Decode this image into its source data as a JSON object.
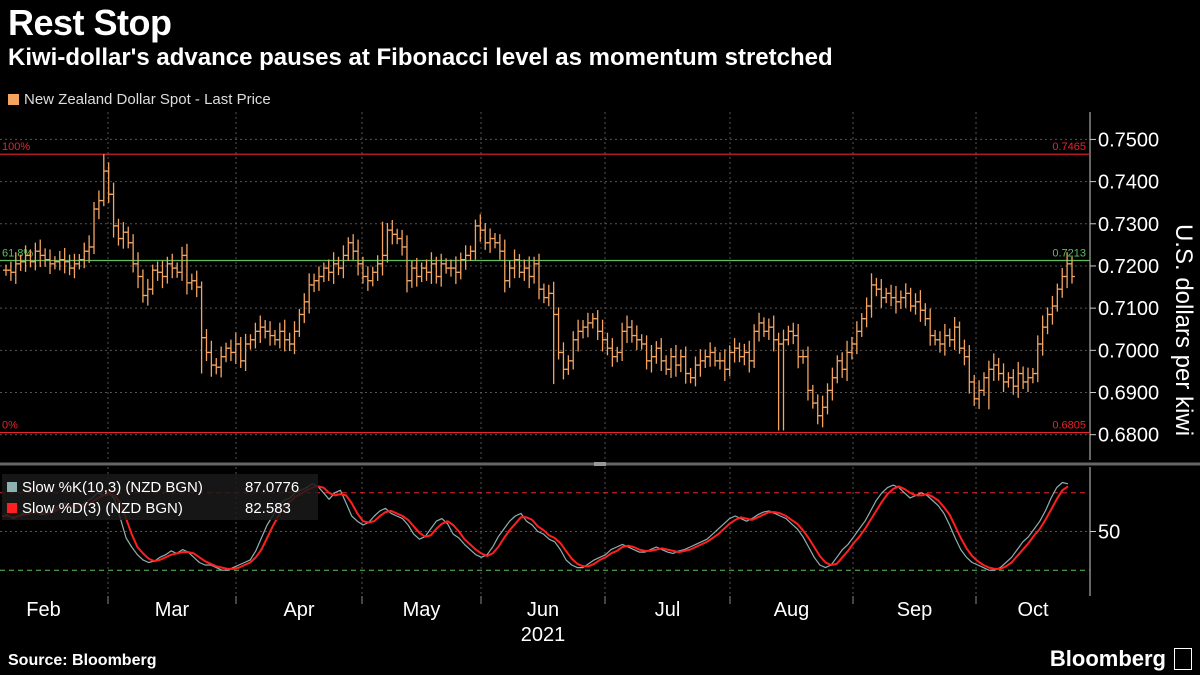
{
  "header": {
    "title": "Rest Stop",
    "subtitle": "Kiwi-dollar's advance pauses at Fibonacci level as momentum stretched",
    "legend_label": "New Zealand Dollar Spot - Last Price"
  },
  "footer": {
    "source": "Source: Bloomberg",
    "brand": "Bloomberg"
  },
  "colors": {
    "price": "#f4a460",
    "fib_red": "#e8232a",
    "fib_green": "#5fbf5f",
    "k_line": "#8fb0b0",
    "d_line": "#ff1f1f"
  },
  "chart_data": [
    {
      "type": "ohlc",
      "series_name": "New Zealand Dollar Spot - Last Price",
      "ylabel": "U.S. dollars per kiwi",
      "ylim": [
        0.674,
        0.7565
      ],
      "yticks": [
        "0.6800",
        "0.6900",
        "0.7000",
        "0.7100",
        "0.7200",
        "0.7300",
        "0.7400",
        "0.7500"
      ],
      "months": [
        "Feb",
        "Mar",
        "Apr",
        "May",
        "Jun",
        "Jul",
        "Aug",
        "Sep",
        "Oct"
      ],
      "year": "2021",
      "fib_levels": [
        {
          "pct": "100%",
          "value": "0.7465",
          "y": 0.7465
        },
        {
          "pct": "61.8%",
          "value": "0.7213",
          "y": 0.7213
        },
        {
          "pct": "0%",
          "value": "0.6805",
          "y": 0.6805
        }
      ],
      "closes": [
        0.719,
        0.7185,
        0.7205,
        0.721,
        0.7225,
        0.721,
        0.7235,
        0.7225,
        0.7215,
        0.7205,
        0.721,
        0.7215,
        0.721,
        0.7195,
        0.7205,
        0.7215,
        0.7235,
        0.7245,
        0.7335,
        0.7355,
        0.7425,
        0.737,
        0.7295,
        0.7265,
        0.728,
        0.7255,
        0.7205,
        0.7175,
        0.713,
        0.7145,
        0.719,
        0.7185,
        0.7175,
        0.7205,
        0.7195,
        0.7185,
        0.7225,
        0.716,
        0.7165,
        0.715,
        0.703,
        0.6995,
        0.6965,
        0.696,
        0.6985,
        0.7005,
        0.6995,
        0.7015,
        0.6975,
        0.7015,
        0.7025,
        0.7045,
        0.7055,
        0.7045,
        0.7035,
        0.7025,
        0.7045,
        0.7025,
        0.7015,
        0.7045,
        0.7085,
        0.7115,
        0.7155,
        0.7165,
        0.7175,
        0.7195,
        0.7185,
        0.7205,
        0.7195,
        0.7225,
        0.7255,
        0.7235,
        0.7205,
        0.7175,
        0.7165,
        0.7185,
        0.7205,
        0.7225,
        0.7285,
        0.7275,
        0.7265,
        0.7245,
        0.7165,
        0.7195,
        0.7175,
        0.7195,
        0.7185,
        0.7205,
        0.7175,
        0.7205,
        0.7195,
        0.7195,
        0.7185,
        0.7215,
        0.7225,
        0.7235,
        0.7295,
        0.7285,
        0.7255,
        0.7265,
        0.7255,
        0.7235,
        0.7165,
        0.7195,
        0.7215,
        0.7185,
        0.7195,
        0.7175,
        0.7205,
        0.7145,
        0.7125,
        0.7135,
        0.7085,
        0.6995,
        0.6955,
        0.6975,
        0.7025,
        0.7045,
        0.7055,
        0.7065,
        0.7075,
        0.7045,
        0.7025,
        0.7005,
        0.6985,
        0.6995,
        0.7045,
        0.7055,
        0.7035,
        0.7025,
        0.7015,
        0.6975,
        0.6985,
        0.7005,
        0.6975,
        0.6955,
        0.6985,
        0.6965,
        0.6985,
        0.6945,
        0.6935,
        0.6965,
        0.6975,
        0.6985,
        0.6995,
        0.6975,
        0.6975,
        0.6955,
        0.6995,
        0.7005,
        0.6985,
        0.6995,
        0.6975,
        0.7045,
        0.7065,
        0.7045,
        0.7055,
        0.7025,
        0.7015,
        0.7025,
        0.7045,
        0.7035,
        0.6985,
        0.6985,
        0.6905,
        0.6875,
        0.6845,
        0.6865,
        0.6905,
        0.6935,
        0.6975,
        0.6955,
        0.6995,
        0.7015,
        0.7045,
        0.7075,
        0.7105,
        0.7155,
        0.7145,
        0.7125,
        0.7135,
        0.7125,
        0.7115,
        0.7125,
        0.7135,
        0.7105,
        0.7115,
        0.7095,
        0.7075,
        0.7035,
        0.7025,
        0.7015,
        0.7035,
        0.7025,
        0.7055,
        0.7005,
        0.6985,
        0.6925,
        0.6885,
        0.6905,
        0.6935,
        0.6955,
        0.6965,
        0.6945,
        0.6925,
        0.6935,
        0.6915,
        0.6945,
        0.6925,
        0.6935,
        0.6945,
        0.7015,
        0.7055,
        0.7085,
        0.7105,
        0.7145,
        0.7175,
        0.7205,
        0.7175
      ],
      "lows": [
        {
          "i": 158,
          "v": 0.681
        },
        {
          "i": 159,
          "v": 0.681
        },
        {
          "i": 40,
          "v": 0.6945
        },
        {
          "i": 112,
          "v": 0.692
        },
        {
          "i": 201,
          "v": 0.686
        }
      ],
      "highs": [
        {
          "i": 20,
          "v": 0.7465
        },
        {
          "i": 96,
          "v": 0.731
        },
        {
          "i": 77,
          "v": 0.7305
        }
      ]
    },
    {
      "type": "line",
      "ylim": [
        0,
        100
      ],
      "ytick": "50",
      "overbought": 80,
      "oversold": 20,
      "series": [
        {
          "name": "Slow %K(10,3) (NZD BGN)",
          "last": "87.0776",
          "values": [
            62,
            63,
            60,
            62,
            65,
            64,
            66,
            63,
            64,
            66,
            70,
            72,
            70,
            68,
            70,
            73,
            76,
            80,
            78,
            80,
            75,
            60,
            45,
            38,
            32,
            28,
            26,
            27,
            30,
            32,
            35,
            33,
            36,
            34,
            30,
            26,
            24,
            24,
            22,
            20,
            20,
            22,
            24,
            26,
            28,
            35,
            45,
            55,
            62,
            70,
            74,
            76,
            80,
            82,
            84,
            87,
            85,
            80,
            75,
            80,
            82,
            72,
            62,
            58,
            55,
            57,
            62,
            66,
            68,
            64,
            62,
            60,
            55,
            48,
            44,
            46,
            52,
            58,
            60,
            56,
            48,
            45,
            40,
            36,
            32,
            30,
            32,
            38,
            46,
            52,
            58,
            62,
            64,
            58,
            55,
            50,
            48,
            44,
            42,
            36,
            28,
            24,
            22,
            22,
            25,
            28,
            30,
            32,
            36,
            38,
            40,
            38,
            36,
            34,
            34,
            36,
            38,
            36,
            34,
            33,
            35,
            36,
            38,
            40,
            42,
            44,
            48,
            52,
            56,
            60,
            62,
            60,
            58,
            60,
            63,
            65,
            66,
            64,
            62,
            60,
            56,
            52,
            46,
            38,
            30,
            24,
            22,
            24,
            30,
            36,
            40,
            46,
            52,
            58,
            66,
            74,
            80,
            84,
            86,
            84,
            80,
            76,
            78,
            80,
            78,
            74,
            70,
            64,
            55,
            45,
            36,
            30,
            26,
            24,
            22,
            20,
            20,
            22,
            26,
            30,
            36,
            42,
            46,
            52,
            58,
            66,
            76,
            84,
            88,
            87
          ]
        },
        {
          "name": "Slow %D(3) (NZD BGN)",
          "last": "82.583",
          "values": [
            62,
            62,
            61,
            62,
            63,
            64,
            65,
            64,
            64,
            65,
            67,
            69,
            70,
            70,
            69,
            71,
            73,
            76,
            78,
            79,
            78,
            72,
            60,
            48,
            38,
            33,
            29,
            27,
            28,
            30,
            32,
            33,
            34,
            34,
            33,
            30,
            27,
            25,
            23,
            22,
            21,
            21,
            22,
            24,
            26,
            30,
            36,
            45,
            54,
            62,
            69,
            73,
            77,
            79,
            82,
            84,
            85,
            84,
            80,
            78,
            79,
            78,
            72,
            64,
            58,
            57,
            58,
            62,
            65,
            66,
            64,
            62,
            59,
            54,
            49,
            46,
            47,
            52,
            56,
            58,
            55,
            50,
            44,
            40,
            36,
            33,
            31,
            33,
            38,
            45,
            51,
            56,
            61,
            61,
            59,
            54,
            51,
            47,
            45,
            41,
            35,
            29,
            25,
            23,
            23,
            25,
            28,
            30,
            33,
            35,
            38,
            39,
            38,
            36,
            35,
            35,
            36,
            37,
            36,
            35,
            34,
            35,
            36,
            38,
            40,
            42,
            45,
            48,
            52,
            56,
            59,
            61,
            60,
            59,
            61,
            63,
            65,
            65,
            64,
            62,
            59,
            56,
            51,
            45,
            38,
            31,
            26,
            24,
            25,
            30,
            35,
            41,
            46,
            52,
            59,
            66,
            73,
            79,
            83,
            85,
            83,
            80,
            78,
            78,
            79,
            77,
            74,
            69,
            63,
            54,
            45,
            37,
            31,
            27,
            24,
            22,
            21,
            21,
            23,
            26,
            31,
            36,
            41,
            47,
            52,
            59,
            67,
            75,
            82,
            85
          ]
        }
      ]
    }
  ]
}
